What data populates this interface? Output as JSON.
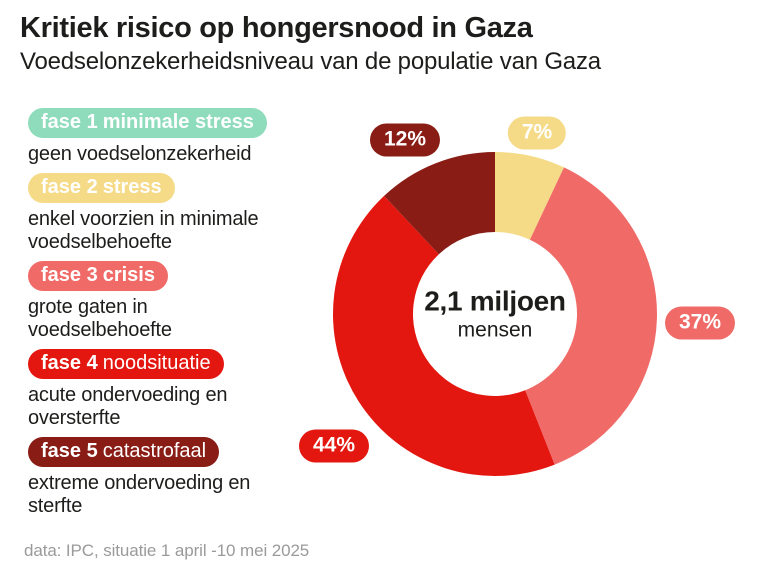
{
  "header": {
    "title": "Kritiek risico op hongersnood in Gaza",
    "subtitle": "Voedselonzekerheidsniveau van de populatie van Gaza"
  },
  "legend": {
    "items": [
      {
        "phase": "fase 1",
        "name": "minimale stress",
        "description": "geen voedselonzekerheid",
        "color": "#8fdcbc"
      },
      {
        "phase": "fase 2",
        "name": "stress",
        "description": "enkel voorzien in minimale voedselbehoefte",
        "color": "#f5db88"
      },
      {
        "phase": "fase 3",
        "name": "crisis",
        "description": "grote gaten in voedselbehoefte",
        "color": "#f06b68"
      },
      {
        "phase": "fase 4",
        "name": "noodsituatie",
        "description": "acute ondervoeding en oversterfte",
        "color": "#e3170f"
      },
      {
        "phase": "fase 5",
        "name": "catastrofaal",
        "description": "extreme ondervoeding en sterfte",
        "color": "#891c15"
      }
    ]
  },
  "chart_data": {
    "type": "pie",
    "donut": true,
    "title": "Voedselonzekerheidsniveau van de populatie van Gaza",
    "start_angle_deg": -90,
    "direction": "clockwise",
    "center_label": {
      "value": "2,1 miljoen",
      "unit": "mensen"
    },
    "segments": [
      {
        "id": "fase-2-stress",
        "label": "fase 2 stress",
        "value": 7,
        "display": "7%",
        "color": "#f5db88"
      },
      {
        "id": "fase-3-crisis",
        "label": "fase 3 crisis",
        "value": 37,
        "display": "37%",
        "color": "#f06b68"
      },
      {
        "id": "fase-4-noodsituatie",
        "label": "fase 4 noodsituatie",
        "value": 44,
        "display": "44%",
        "color": "#e3170f"
      },
      {
        "id": "fase-5-catastrofaal",
        "label": "fase 5 catastrofaal",
        "value": 12,
        "display": "12%",
        "color": "#891c15"
      }
    ]
  },
  "footer": {
    "source": "data: IPC, situatie 1 april -10 mei 2025"
  }
}
